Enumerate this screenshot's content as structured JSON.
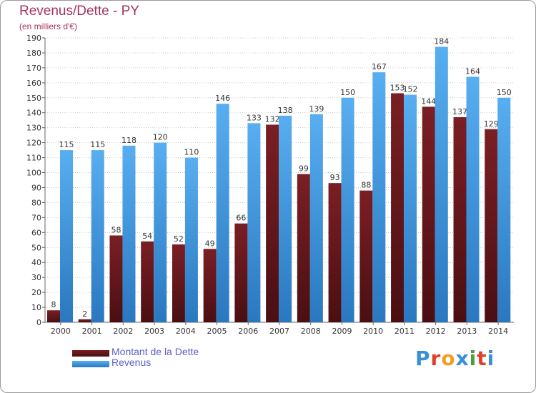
{
  "title": "Revenus/Dette - PY",
  "subtitle": "(en milliers d'€)",
  "legend": {
    "debt_label": "Montant de la Dette",
    "revenue_label": "Revenus"
  },
  "logo": {
    "text": "Proxiti",
    "letters": [
      "P",
      "r",
      "o",
      "x",
      "i",
      "t",
      "i"
    ],
    "letter_colors": [
      "#3a8fd6",
      "#e0402a",
      "#f0a020",
      "#3a8fd6",
      "#4aa040",
      "#e0402a",
      "#3a8fd6"
    ]
  },
  "colors": {
    "debt": "#7a1f24",
    "debt_dark": "#4a0f12",
    "revenue": "#57aef0",
    "revenue_dark": "#2a78c0",
    "axis_text": "#333333",
    "title": "#a3335f"
  },
  "chart_data": {
    "type": "bar",
    "categories": [
      "2000",
      "2001",
      "2002",
      "2003",
      "2004",
      "2005",
      "2006",
      "2007",
      "2008",
      "2009",
      "2010",
      "2011",
      "2012",
      "2013",
      "2014"
    ],
    "series": [
      {
        "name": "Montant de la Dette",
        "values": [
          8,
          2,
          58,
          54,
          52,
          49,
          66,
          132,
          99,
          93,
          88,
          153,
          144,
          137,
          129
        ]
      },
      {
        "name": "Revenus",
        "values": [
          115,
          115,
          118,
          120,
          110,
          146,
          133,
          138,
          139,
          150,
          167,
          152,
          184,
          164,
          150
        ]
      }
    ],
    "ylim": [
      0,
      190
    ],
    "ytick_step": 10,
    "grid": true,
    "legend_position": "bottom-left"
  }
}
